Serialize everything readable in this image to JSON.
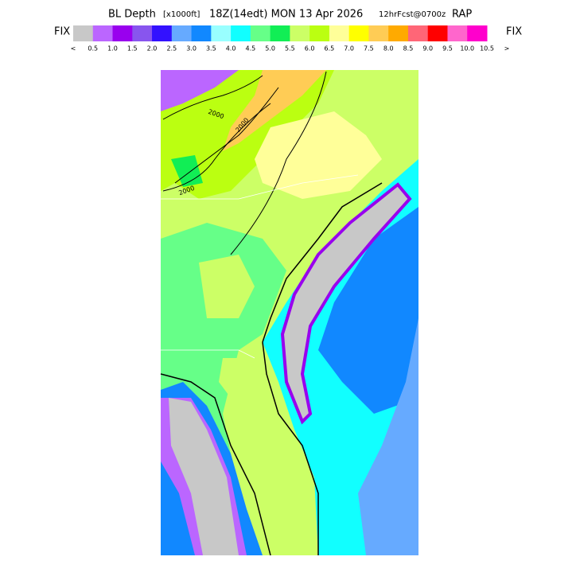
{
  "header": {
    "title_main": "BL Depth",
    "title_units": "[x1000ft]",
    "title_time": "18Z(14edt) MON 13 Apr 2026",
    "title_fcst": "12hrFcst@0700z",
    "title_model": "RAP"
  },
  "legend": {
    "left_label": "FIX",
    "right_label": "FIX",
    "colors": [
      "#c8c8c8",
      "#bb66ff",
      "#9900ee",
      "#8855ee",
      "#3311ff",
      "#66aaff",
      "#1188ff",
      "#99ffff",
      "#11ffff",
      "#66ff88",
      "#11ee55",
      "#ccff66",
      "#bbff11",
      "#ffff99",
      "#ffff00",
      "#ffcc55",
      "#ffaa00",
      "#ff6677",
      "#ff0000",
      "#ff66cc",
      "#ff00cc"
    ],
    "labels": [
      "<",
      "0.5",
      "1.0",
      "1.5",
      "2.0",
      "2.5",
      "3.0",
      "3.5",
      "4.0",
      "4.5",
      "5.0",
      "5.5",
      "6.0",
      "6.5",
      "7.0",
      "7.5",
      "8.0",
      "8.5",
      "9.0",
      "9.5",
      "10.0",
      "10.5",
      ">"
    ]
  },
  "map": {
    "contour_labels": [
      "2000",
      "2000",
      "2000"
    ]
  }
}
